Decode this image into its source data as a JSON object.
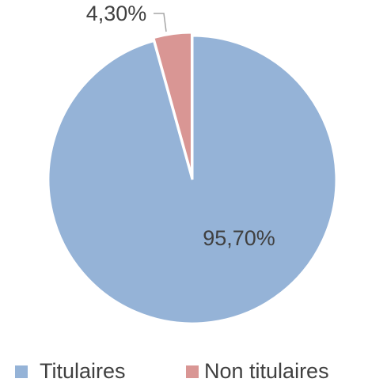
{
  "chart_data": {
    "type": "pie",
    "categories": [
      "Titulaires",
      "Non titulaires"
    ],
    "values": [
      95.7,
      4.3
    ],
    "value_labels": [
      "95,70%",
      "4,30%"
    ],
    "colors": [
      "#95b3d7",
      "#d99694"
    ],
    "legend": "bottom"
  }
}
